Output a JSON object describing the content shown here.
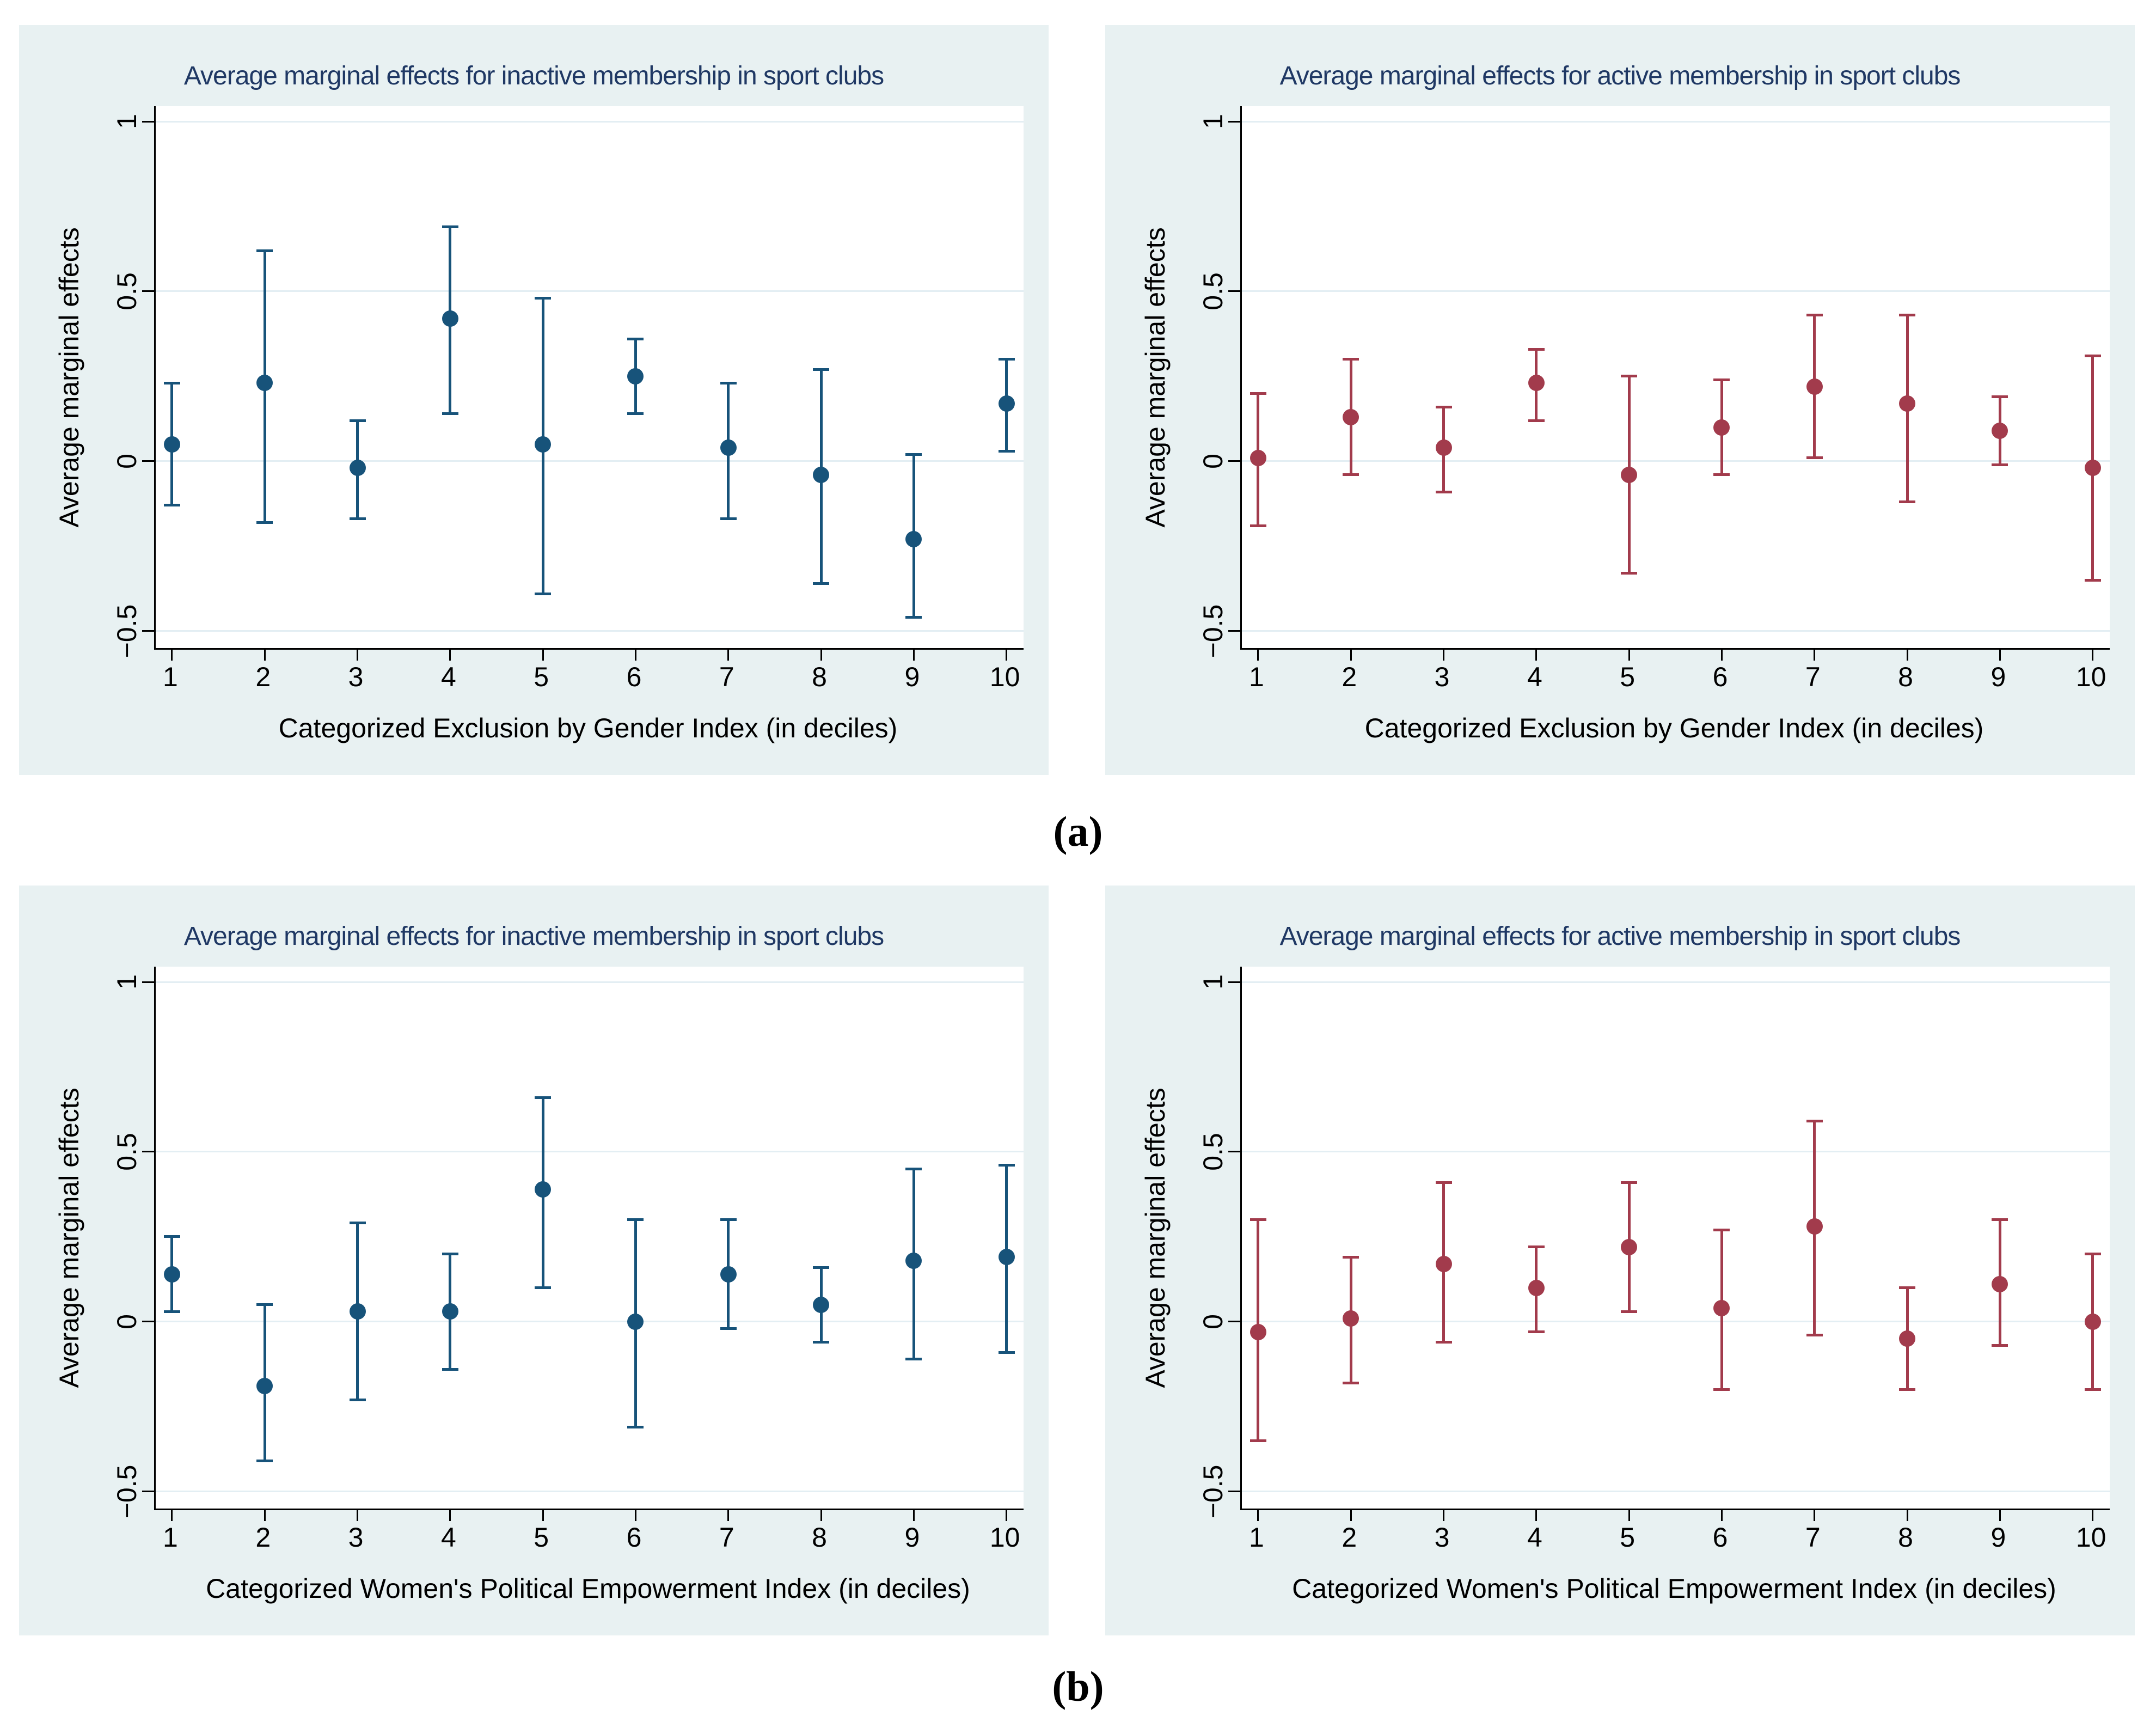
{
  "figure": {
    "label_a": "(a)",
    "label_b": "(b)",
    "background": "#ffffff",
    "panel_background": "#e8f1f2",
    "plot_background": "#ffffff",
    "grid_color": "#e3eef3",
    "title_color": "#1f3864",
    "axis_color": "#000000",
    "series_colors": {
      "inactive": "#17537a",
      "active": "#a23b4c"
    }
  },
  "chart_data": [
    {
      "type": "scatter",
      "marker": "circle-with-error-bars",
      "row": "a",
      "column": "left",
      "title": "Average marginal effects for inactive membership in sport clubs",
      "xlabel": "Categorized Exclusion by Gender Index (in deciles)",
      "ylabel": "Average marginal effects",
      "series_key": "inactive",
      "x": [
        1,
        2,
        3,
        4,
        5,
        6,
        7,
        8,
        9,
        10
      ],
      "y": [
        0.05,
        0.23,
        -0.02,
        0.42,
        0.05,
        0.25,
        0.04,
        -0.04,
        -0.23,
        0.17
      ],
      "ci_low": [
        -0.13,
        -0.18,
        -0.17,
        0.14,
        -0.39,
        0.14,
        -0.17,
        -0.36,
        -0.46,
        0.03
      ],
      "ci_high": [
        0.23,
        0.62,
        0.12,
        0.69,
        0.48,
        0.36,
        0.23,
        0.27,
        0.02,
        0.3
      ],
      "ylim": [
        -0.55,
        1.045
      ],
      "y_ticks": [
        {
          "value": 1,
          "label": "1"
        },
        {
          "value": 0.5,
          "label": "0.5"
        },
        {
          "value": 0,
          "label": "0"
        },
        {
          "value": -0.5,
          "label": "−0.5"
        }
      ],
      "grid": "horizontal"
    },
    {
      "type": "scatter",
      "marker": "circle-with-error-bars",
      "row": "a",
      "column": "right",
      "title": "Average marginal effects for active membership in sport clubs",
      "xlabel": "Categorized Exclusion by Gender Index (in deciles)",
      "ylabel": "Average marginal effects",
      "series_key": "active",
      "x": [
        1,
        2,
        3,
        4,
        5,
        6,
        7,
        8,
        9,
        10
      ],
      "y": [
        0.01,
        0.13,
        0.04,
        0.23,
        -0.04,
        0.1,
        0.22,
        0.17,
        0.09,
        -0.02
      ],
      "ci_low": [
        -0.19,
        -0.04,
        -0.09,
        0.12,
        -0.33,
        -0.04,
        0.01,
        -0.12,
        -0.01,
        -0.35
      ],
      "ci_high": [
        0.2,
        0.3,
        0.16,
        0.33,
        0.25,
        0.24,
        0.43,
        0.43,
        0.19,
        0.31
      ],
      "ylim": [
        -0.55,
        1.045
      ],
      "y_ticks": [
        {
          "value": 1,
          "label": "1"
        },
        {
          "value": 0.5,
          "label": "0.5"
        },
        {
          "value": 0,
          "label": "0"
        },
        {
          "value": -0.5,
          "label": "−0.5"
        }
      ],
      "grid": "horizontal"
    },
    {
      "type": "scatter",
      "marker": "circle-with-error-bars",
      "row": "b",
      "column": "left",
      "title": "Average marginal effects for inactive membership in sport clubs",
      "xlabel": "Categorized Women's Political Empowerment Index (in deciles)",
      "ylabel": "Average marginal effects",
      "series_key": "inactive",
      "x": [
        1,
        2,
        3,
        4,
        5,
        6,
        7,
        8,
        9,
        10
      ],
      "y": [
        0.14,
        -0.19,
        0.03,
        0.03,
        0.39,
        0.0,
        0.14,
        0.05,
        0.18,
        0.19
      ],
      "ci_low": [
        0.03,
        -0.41,
        -0.23,
        -0.14,
        0.1,
        -0.31,
        -0.02,
        -0.06,
        -0.11,
        -0.09
      ],
      "ci_high": [
        0.25,
        0.05,
        0.29,
        0.2,
        0.66,
        0.3,
        0.3,
        0.16,
        0.45,
        0.46
      ],
      "ylim": [
        -0.55,
        1.045
      ],
      "y_ticks": [
        {
          "value": 1,
          "label": "1"
        },
        {
          "value": 0.5,
          "label": "0.5"
        },
        {
          "value": 0,
          "label": "0"
        },
        {
          "value": -0.5,
          "label": "−0.5"
        }
      ],
      "grid": "horizontal"
    },
    {
      "type": "scatter",
      "marker": "circle-with-error-bars",
      "row": "b",
      "column": "right",
      "title": "Average marginal effects for active membership in sport clubs",
      "xlabel": "Categorized Women's Political Empowerment Index (in deciles)",
      "ylabel": "Average marginal effects",
      "series_key": "active",
      "x": [
        1,
        2,
        3,
        4,
        5,
        6,
        7,
        8,
        9,
        10
      ],
      "y": [
        -0.03,
        0.01,
        0.17,
        0.1,
        0.22,
        0.04,
        0.28,
        -0.05,
        0.11,
        0.0
      ],
      "ci_low": [
        -0.35,
        -0.18,
        -0.06,
        -0.03,
        0.03,
        -0.2,
        -0.04,
        -0.2,
        -0.07,
        -0.2
      ],
      "ci_high": [
        0.3,
        0.19,
        0.41,
        0.22,
        0.41,
        0.27,
        0.59,
        0.1,
        0.3,
        0.2
      ],
      "ylim": [
        -0.55,
        1.045
      ],
      "y_ticks": [
        {
          "value": 1,
          "label": "1"
        },
        {
          "value": 0.5,
          "label": "0.5"
        },
        {
          "value": 0,
          "label": "0"
        },
        {
          "value": -0.5,
          "label": "−0.5"
        }
      ],
      "grid": "horizontal"
    }
  ]
}
